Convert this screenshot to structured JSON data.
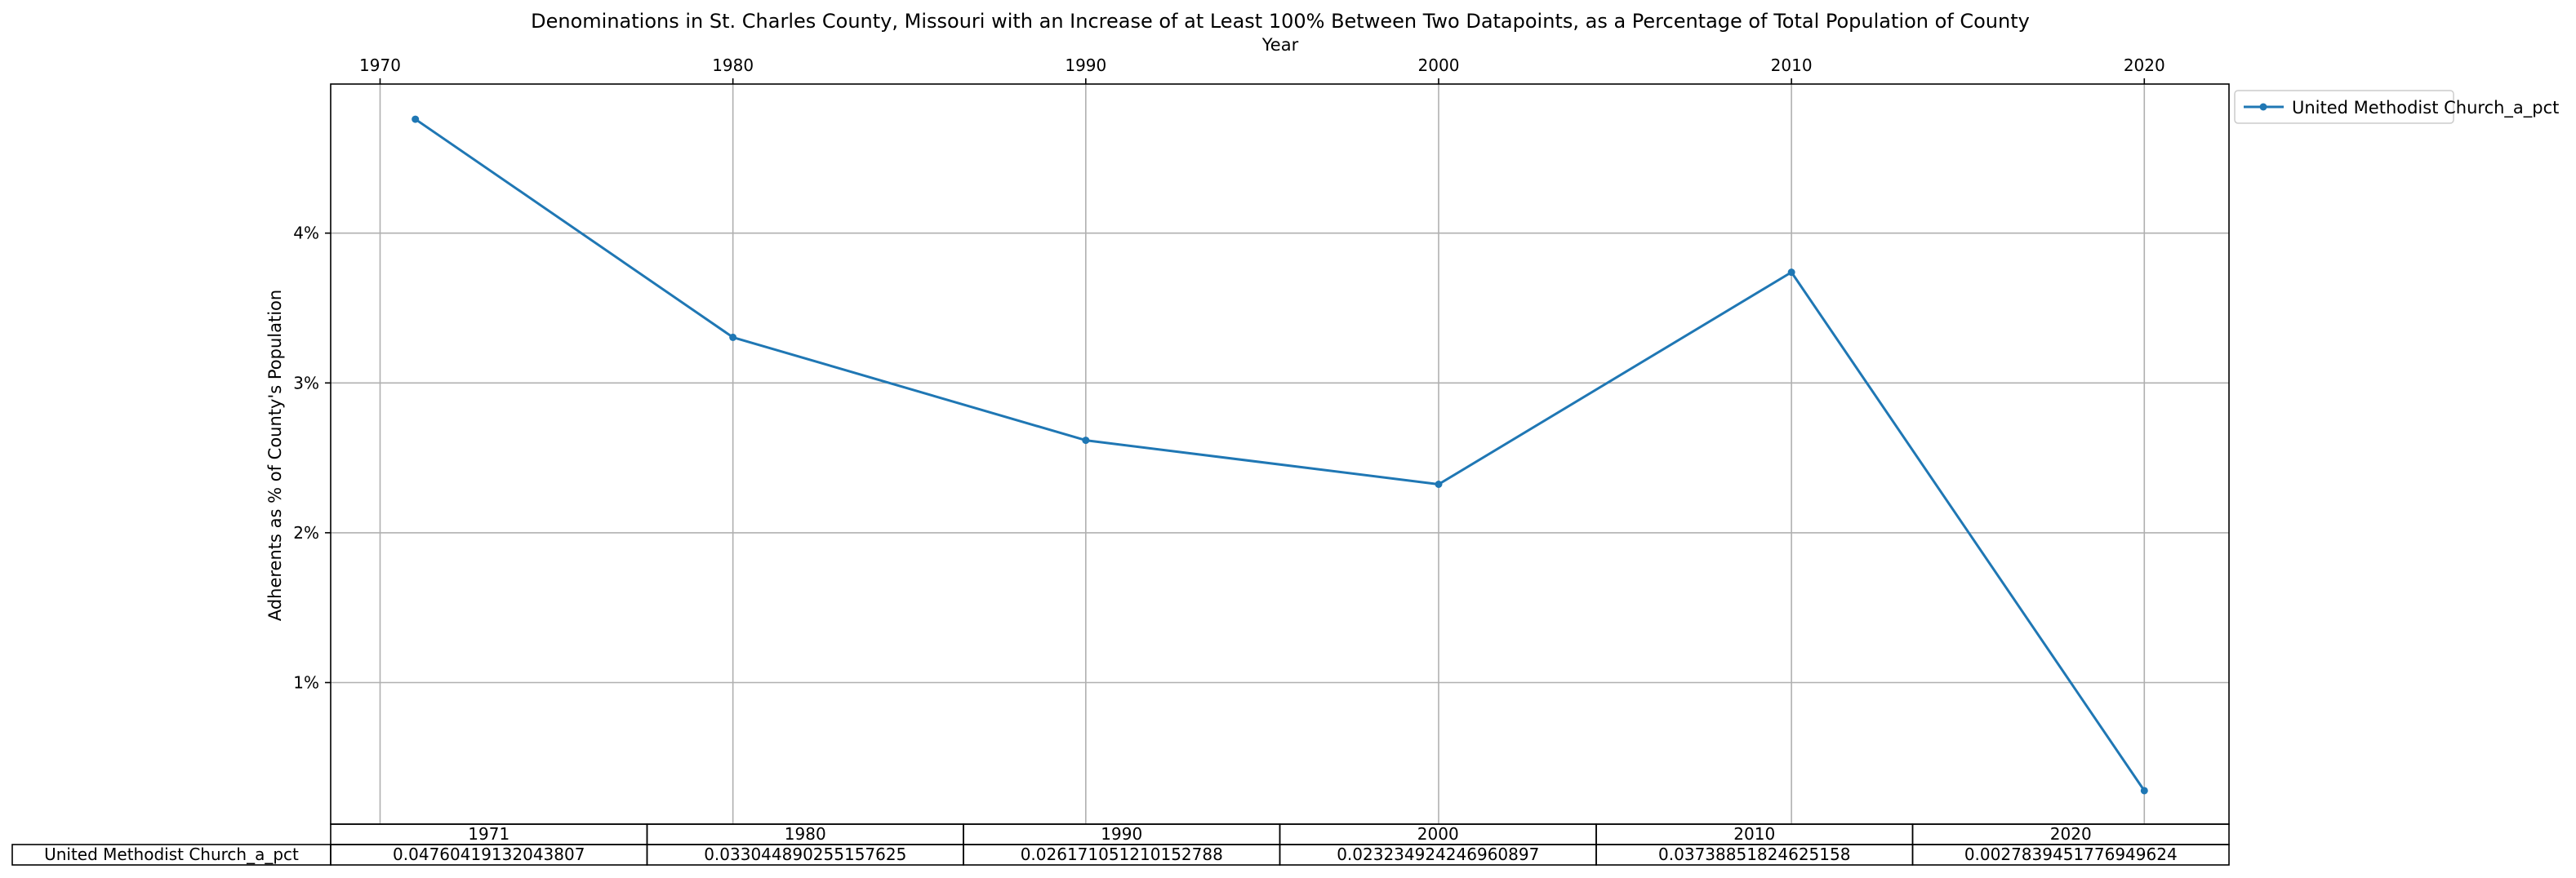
{
  "chart_data": {
    "type": "line",
    "title": "Denominations in St. Charles County, Missouri with an Increase of at Least 100% Between Two Datapoints, as a Percentage of Total Population of County",
    "xlabel": "Year",
    "ylabel": "Adherents as % of County's Population",
    "x_ticks": [
      "1970",
      "1980",
      "1990",
      "2000",
      "2010",
      "2020"
    ],
    "y_ticks": [
      "1%",
      "2%",
      "3%",
      "4%"
    ],
    "y_tick_values": [
      0.01,
      0.02,
      0.03,
      0.04
    ],
    "xlim": [
      1968.6,
      2022.4
    ],
    "ylim": [
      0.00055,
      0.04995
    ],
    "x_axis_position": "top",
    "grid": true,
    "legend_position": "outside-top-right",
    "x": [
      1971,
      1980,
      1990,
      2000,
      2010,
      2020
    ],
    "series": [
      {
        "name": "United Methodist Church_a_pct",
        "color": "#1f77b4",
        "values": [
          0.04760419132043807,
          0.033044890255157625,
          0.026171051210152788,
          0.023234924246960897,
          0.03738851824625158,
          0.0027839451776949624
        ]
      }
    ],
    "table": {
      "col_labels": [
        "1971",
        "1980",
        "1990",
        "2000",
        "2010",
        "2020"
      ],
      "row_label": "United Methodist Church_a_pct",
      "cells": [
        "0.04760419132043807",
        "0.033044890255157625",
        "0.026171051210152788",
        "0.023234924246960897",
        "0.03738851824625158",
        "0.0027839451776949624"
      ]
    }
  }
}
